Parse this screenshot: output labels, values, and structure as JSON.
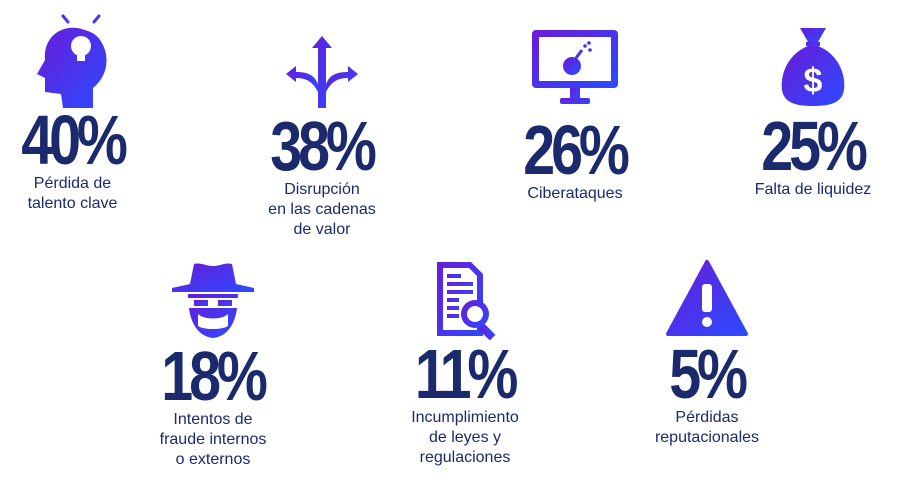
{
  "colors": {
    "text": "#1a2a6c",
    "gradient_start": "#6a1bd8",
    "gradient_end": "#2b4bff"
  },
  "stats": [
    {
      "icon": "head-lightbulb-icon",
      "percent": "40%",
      "label": "Pérdida de\ntalento clave"
    },
    {
      "icon": "diverging-arrows-icon",
      "percent": "38%",
      "label": "Disrupción\nen las cadenas\nde valor"
    },
    {
      "icon": "monitor-bomb-icon",
      "percent": "26%",
      "label": "Ciberataques"
    },
    {
      "icon": "money-bag-icon",
      "percent": "25%",
      "label": "Falta de liquidez"
    },
    {
      "icon": "masked-bandit-icon",
      "percent": "18%",
      "label": "Intentos de\nfraude internos\no externos"
    },
    {
      "icon": "document-magnifier-icon",
      "percent": "11%",
      "label": "Incumplimiento\nde leyes y\nregulaciones"
    },
    {
      "icon": "warning-triangle-icon",
      "percent": "5%",
      "label": "Pérdidas\nreputacionales"
    }
  ]
}
